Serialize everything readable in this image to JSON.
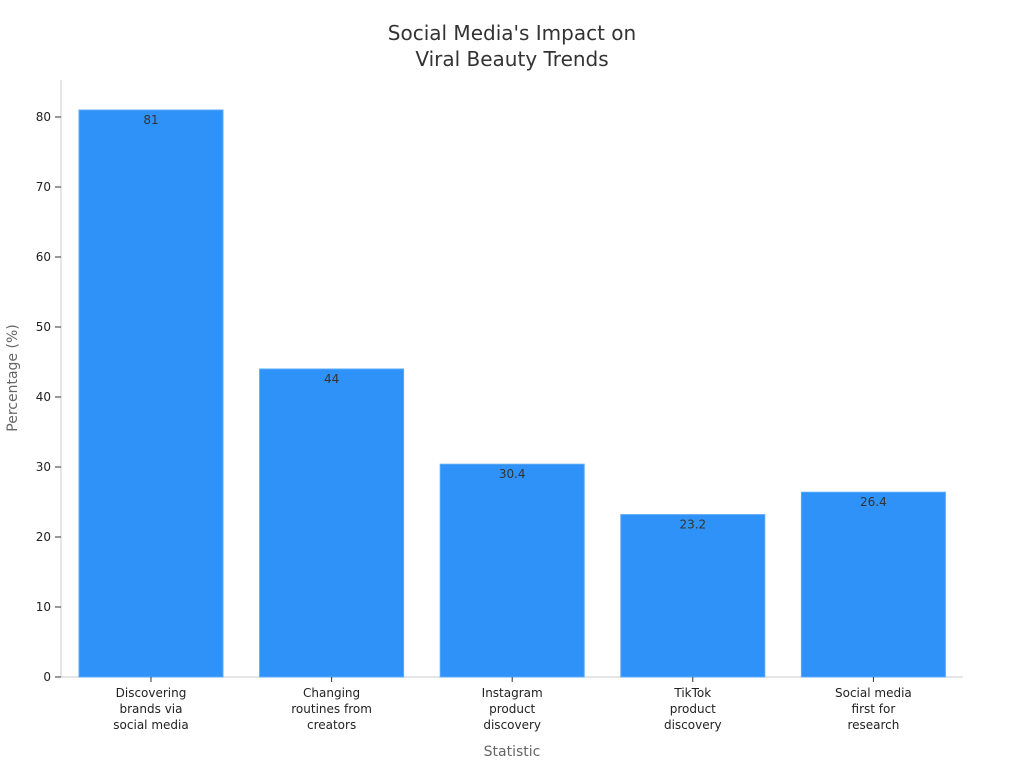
{
  "chart_data": {
    "type": "bar",
    "title": [
      "Social Media's Impact on",
      "Viral Beauty Trends"
    ],
    "xlabel": "Statistic",
    "ylabel": "Percentage (%)",
    "ylim": [
      0,
      85
    ],
    "yticks": [
      0,
      10,
      20,
      30,
      40,
      50,
      60,
      70,
      80
    ],
    "categories": [
      [
        "Discovering",
        "brands via",
        "social media"
      ],
      [
        "Changing",
        "routines from",
        "creators"
      ],
      [
        "Instagram",
        "product",
        "discovery"
      ],
      [
        "TikTok",
        "product",
        "discovery"
      ],
      [
        "Social media",
        "first for",
        "research"
      ]
    ],
    "values": [
      81,
      44,
      30.4,
      23.2,
      26.4
    ],
    "data_labels": [
      "81",
      "44",
      "30.4",
      "23.2",
      "26.4"
    ],
    "bar_color": "#2f92f8",
    "grid": false,
    "legend": "none"
  }
}
